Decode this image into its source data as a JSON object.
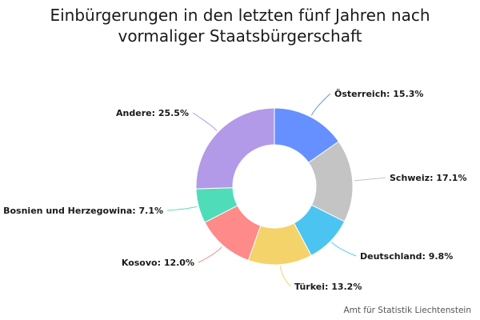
{
  "chart_data": {
    "type": "pie",
    "title_lines": [
      "Einbürgerungen in den letzten fünf Jahren nach",
      "vormaliger Staatsbürgerschaft"
    ],
    "donut": true,
    "slices": [
      {
        "label": "Österreich",
        "value": 15.3,
        "display": "Österreich: 15.3%",
        "color": "#6690ff"
      },
      {
        "label": "Schweiz",
        "value": 17.1,
        "display": "Schweiz: 17.1%",
        "color": "#c4c4c4"
      },
      {
        "label": "Deutschland",
        "value": 9.8,
        "display": "Deutschland: 9.8%",
        "color": "#4cc4f2"
      },
      {
        "label": "Türkei",
        "value": 13.2,
        "display": "Türkei: 13.2%",
        "color": "#f5d36b"
      },
      {
        "label": "Kosovo",
        "value": 12.0,
        "display": "Kosovo: 12.0%",
        "color": "#ff8a8a"
      },
      {
        "label": "Bosnien und Herzegowina",
        "value": 7.1,
        "display": "Bosnien und Herzegowina: 7.1%",
        "color": "#4fdcb8"
      },
      {
        "label": "Andere",
        "value": 25.5,
        "display": "Andere: 25.5%",
        "color": "#b39ae8"
      }
    ]
  },
  "credit": "Amt für Statistik Liechtenstein"
}
